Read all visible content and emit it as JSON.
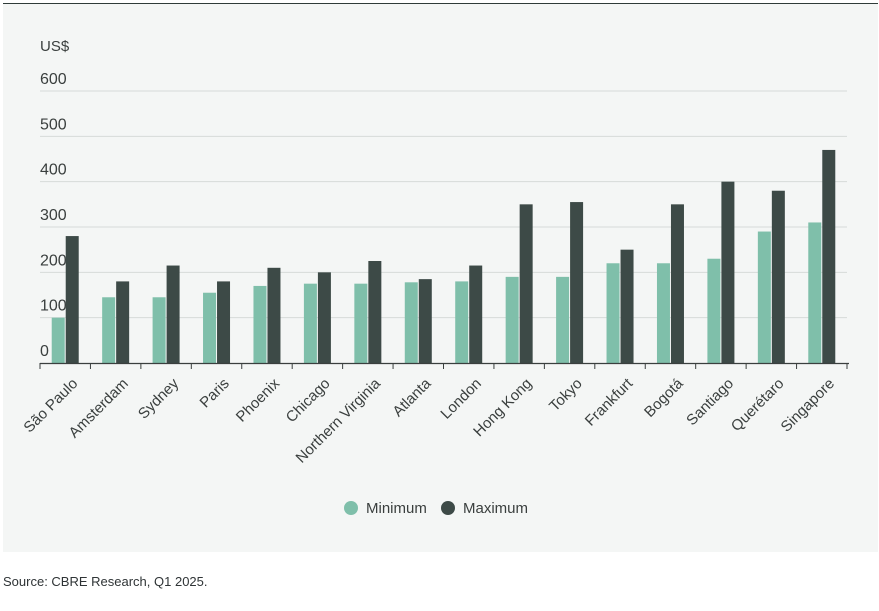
{
  "chart_data": {
    "type": "bar",
    "unit_label": "US$",
    "categories": [
      "São Paulo",
      "Amsterdam",
      "Sydney",
      "Paris",
      "Phoenix",
      "Chicago",
      "Northern Virginia",
      "Atlanta",
      "London",
      "Hong Kong",
      "Tokyo",
      "Frankfurt",
      "Bogotá",
      "Santiago",
      "Querétaro",
      "Singapore"
    ],
    "series": [
      {
        "name": "Minimum",
        "color": "#7fbfaa",
        "values": [
          100,
          145,
          145,
          155,
          170,
          175,
          175,
          178,
          180,
          190,
          190,
          220,
          220,
          230,
          290,
          310
        ]
      },
      {
        "name": "Maximum",
        "color": "#3d4a47",
        "values": [
          280,
          180,
          215,
          180,
          210,
          200,
          225,
          185,
          215,
          350,
          355,
          250,
          350,
          400,
          380,
          470
        ]
      }
    ],
    "ylim": [
      0,
      600
    ],
    "yticks": [
      0,
      100,
      200,
      300,
      400,
      500,
      600
    ],
    "grid": true,
    "legend_position": "bottom-center"
  },
  "source": "Source: CBRE Research, Q1 2025."
}
